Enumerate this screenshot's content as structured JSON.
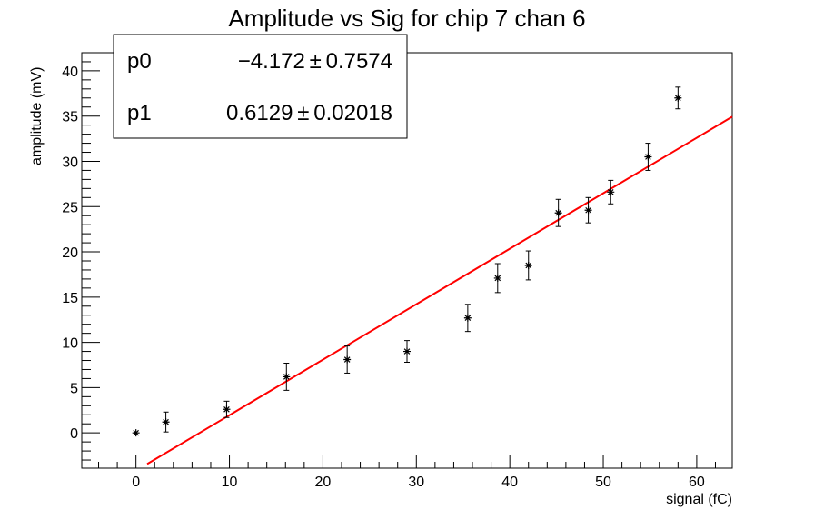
{
  "chart_data": {
    "type": "scatter",
    "title": "Amplitude vs Sig for chip 7 chan 6",
    "xlabel": "signal (fC)",
    "ylabel": "amplitude (mV)",
    "xlim": [
      -5.8,
      63.8
    ],
    "ylim": [
      -3.9,
      42.0
    ],
    "x_ticks": [
      0,
      10,
      20,
      30,
      40,
      50,
      60
    ],
    "y_ticks": [
      0,
      5,
      10,
      15,
      20,
      25,
      30,
      35,
      40
    ],
    "grid": false,
    "points": [
      {
        "x": 0.0,
        "y": 0.0,
        "err": 0.0
      },
      {
        "x": 3.2,
        "y": 1.2,
        "err": 1.1
      },
      {
        "x": 9.7,
        "y": 2.6,
        "err": 0.9
      },
      {
        "x": 16.1,
        "y": 6.2,
        "err": 1.5
      },
      {
        "x": 22.6,
        "y": 8.1,
        "err": 1.5
      },
      {
        "x": 29.0,
        "y": 9.0,
        "err": 1.2
      },
      {
        "x": 35.5,
        "y": 12.7,
        "err": 1.5
      },
      {
        "x": 38.7,
        "y": 17.1,
        "err": 1.6
      },
      {
        "x": 42.0,
        "y": 18.5,
        "err": 1.6
      },
      {
        "x": 45.2,
        "y": 24.3,
        "err": 1.5
      },
      {
        "x": 48.4,
        "y": 24.6,
        "err": 1.4
      },
      {
        "x": 50.8,
        "y": 26.6,
        "err": 1.3
      },
      {
        "x": 54.8,
        "y": 30.5,
        "err": 1.5
      },
      {
        "x": 58.0,
        "y": 37.0,
        "err": 1.2
      }
    ],
    "fit": {
      "p0": -4.172,
      "p1": 0.6129,
      "x_range": [
        1.2,
        63.8
      ],
      "color": "#ff0000"
    },
    "stats": {
      "rows": [
        {
          "name": "p0",
          "value": "−4.172 ± 0.7574"
        },
        {
          "name": "p1",
          "value": "0.6129 ± 0.02018"
        }
      ]
    },
    "marker_color": "#000000"
  }
}
